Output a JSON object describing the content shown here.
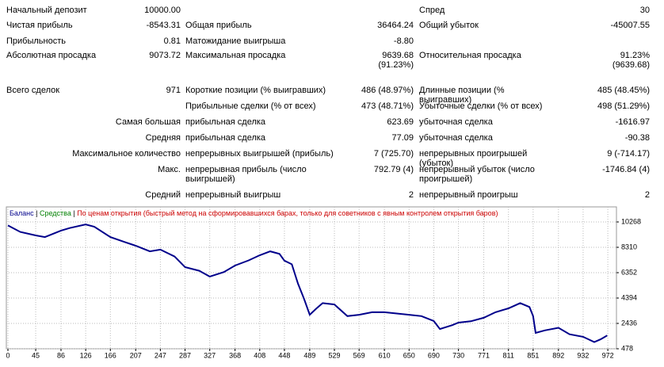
{
  "table": {
    "rows": [
      [
        "Начальный депозит",
        "10000.00",
        null,
        null,
        "Спред",
        "30"
      ],
      [
        "Чистая прибыль",
        "-8543.31",
        "Общая прибыль",
        "36464.24",
        "Общий убыток",
        "-45007.55"
      ],
      [
        "Прибыльность",
        "0.81",
        "Матожидание выигрыша",
        "-8.80",
        null,
        null
      ],
      [
        "Абсолютная просадка",
        "9073.72",
        "Максимальная просадка",
        [
          "9639.68",
          "(91.23%)"
        ],
        "Относительная просадка",
        [
          "91.23%",
          "(9639.68)"
        ]
      ],
      [
        "Всего сделок",
        "971",
        "Короткие позиции (% выигравших)",
        "486 (48.97%)",
        "Длинные позиции (% выигравших)",
        "485 (48.45%)"
      ],
      [
        null,
        null,
        "Прибыльные сделки (% от всех)",
        "473 (48.71%)",
        "Убыточные сделки (% от всех)",
        "498 (51.29%)"
      ],
      [
        null,
        "Самая большая",
        "прибыльная сделка",
        "623.69",
        "убыточная сделка",
        "-1616.97"
      ],
      [
        null,
        "Средняя",
        "прибыльная сделка",
        "77.09",
        "убыточная сделка",
        "-90.38"
      ],
      [
        null,
        "Максимальное количество",
        "непрерывных выигрышей (прибыль)",
        "7 (725.70)",
        "непрерывных проигрышей (убыток)",
        "9 (-714.17)"
      ],
      [
        null,
        "Макс.",
        "непрерывная прибыль (число выигрышей)",
        "792.79 (4)",
        "непрерывный убыток (число проигрышей)",
        "-1746.84 (4)"
      ],
      [
        null,
        "Средний",
        "непрерывный выигрыш",
        "2",
        "непрерывный проигрыш",
        "2"
      ]
    ]
  },
  "chart_data": {
    "type": "line",
    "series": [
      {
        "name": "Баланс",
        "color": "#00008b",
        "x": [
          0,
          20,
          45,
          60,
          86,
          100,
          126,
          140,
          166,
          190,
          207,
          230,
          247,
          270,
          287,
          310,
          327,
          350,
          368,
          390,
          408,
          425,
          440,
          448,
          460,
          470,
          480,
          489,
          500,
          510,
          529,
          550,
          569,
          590,
          610,
          630,
          650,
          670,
          690,
          700,
          720,
          730,
          750,
          771,
          790,
          811,
          830,
          845,
          851,
          855,
          870,
          892,
          910,
          932,
          950,
          960,
          971
        ],
        "values": [
          10000,
          9500,
          9228,
          9100,
          9600,
          9800,
          10080,
          9900,
          9100,
          8700,
          8430,
          8000,
          8130,
          7600,
          6780,
          6500,
          6050,
          6400,
          6900,
          7300,
          7700,
          8000,
          7800,
          7280,
          7000,
          5500,
          4300,
          3100,
          3600,
          4000,
          3900,
          3000,
          3100,
          3300,
          3300,
          3200,
          3100,
          3000,
          2620,
          2000,
          2300,
          2500,
          2600,
          2870,
          3300,
          3600,
          4000,
          3700,
          3000,
          1700,
          1900,
          2100,
          1600,
          1400,
          1000,
          1200,
          1500
        ]
      }
    ],
    "equity_label": "Средства",
    "equity_color": "#008000",
    "mode_label": "По ценам открытия (быстрый метод на сформировавшихся барах, только для советников с явным контролем открытия баров)",
    "mode_color": "#cc0000",
    "xlim": [
      0,
      986
    ],
    "xticks": [
      0,
      45,
      86,
      126,
      166,
      207,
      247,
      287,
      327,
      368,
      408,
      448,
      489,
      529,
      569,
      610,
      650,
      690,
      730,
      771,
      811,
      851,
      892,
      932,
      972
    ],
    "ylim": [
      478,
      11431
    ],
    "yticks": [
      478,
      2436,
      4394,
      6352,
      8310,
      10268
    ],
    "grid": true
  }
}
